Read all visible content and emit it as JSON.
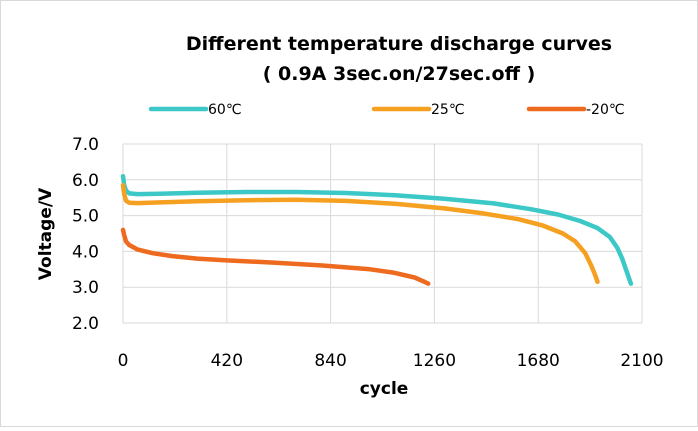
{
  "chart_data": {
    "type": "line",
    "title": "Different temperature discharge curves",
    "subtitle": "( 0.9A 3sec.on/27sec.off  )",
    "xlabel": "cycle",
    "ylabel": "Voltage/V",
    "xlim": [
      0,
      2100
    ],
    "ylim": [
      2.0,
      7.0
    ],
    "x_ticks": [
      "0",
      "420",
      "840",
      "1260",
      "1680",
      "2100"
    ],
    "y_ticks": [
      "2.0",
      "3.0",
      "4.0",
      "5.0",
      "6.0",
      "7.0"
    ],
    "grid": true,
    "legend_position": "top",
    "series": [
      {
        "name": "60℃",
        "color": "#3bc8c6",
        "points": [
          [
            0,
            6.1
          ],
          [
            5,
            5.85
          ],
          [
            12,
            5.7
          ],
          [
            25,
            5.62
          ],
          [
            60,
            5.6
          ],
          [
            150,
            5.61
          ],
          [
            300,
            5.64
          ],
          [
            500,
            5.66
          ],
          [
            700,
            5.66
          ],
          [
            900,
            5.63
          ],
          [
            1100,
            5.57
          ],
          [
            1300,
            5.47
          ],
          [
            1500,
            5.34
          ],
          [
            1650,
            5.18
          ],
          [
            1760,
            5.03
          ],
          [
            1850,
            4.85
          ],
          [
            1920,
            4.65
          ],
          [
            1970,
            4.4
          ],
          [
            2000,
            4.1
          ],
          [
            2020,
            3.8
          ],
          [
            2035,
            3.5
          ],
          [
            2045,
            3.3
          ],
          [
            2055,
            3.1
          ]
        ]
      },
      {
        "name": "25℃",
        "color": "#f6a021",
        "points": [
          [
            0,
            5.85
          ],
          [
            5,
            5.6
          ],
          [
            12,
            5.42
          ],
          [
            25,
            5.36
          ],
          [
            60,
            5.35
          ],
          [
            150,
            5.37
          ],
          [
            300,
            5.4
          ],
          [
            500,
            5.43
          ],
          [
            700,
            5.44
          ],
          [
            900,
            5.41
          ],
          [
            1100,
            5.33
          ],
          [
            1300,
            5.2
          ],
          [
            1450,
            5.07
          ],
          [
            1600,
            4.9
          ],
          [
            1700,
            4.72
          ],
          [
            1780,
            4.5
          ],
          [
            1830,
            4.28
          ],
          [
            1870,
            3.95
          ],
          [
            1895,
            3.6
          ],
          [
            1910,
            3.35
          ],
          [
            1920,
            3.15
          ]
        ]
      },
      {
        "name": "-20℃",
        "color": "#ee6a1f",
        "points": [
          [
            0,
            4.6
          ],
          [
            5,
            4.45
          ],
          [
            12,
            4.28
          ],
          [
            25,
            4.18
          ],
          [
            60,
            4.05
          ],
          [
            120,
            3.95
          ],
          [
            200,
            3.87
          ],
          [
            300,
            3.8
          ],
          [
            420,
            3.75
          ],
          [
            600,
            3.69
          ],
          [
            800,
            3.61
          ],
          [
            1000,
            3.5
          ],
          [
            1100,
            3.4
          ],
          [
            1180,
            3.27
          ],
          [
            1220,
            3.15
          ],
          [
            1235,
            3.1
          ]
        ]
      }
    ]
  }
}
